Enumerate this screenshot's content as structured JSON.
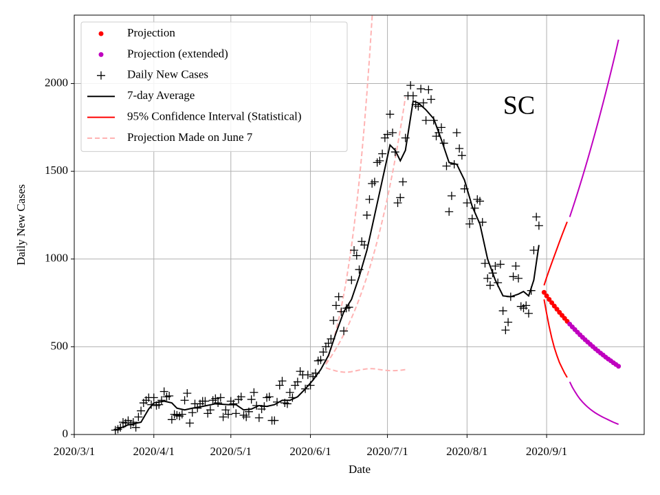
{
  "chart_data": {
    "type": "line",
    "annotation": "SC",
    "xlabel": "Date",
    "ylabel": "Daily New Cases",
    "xlim": [
      "2020/3/1",
      "2020/10/9"
    ],
    "xticks": [
      "2020/3/1",
      "2020/4/1",
      "2020/5/1",
      "2020/6/1",
      "2020/7/1",
      "2020/8/1",
      "2020/9/1"
    ],
    "ylim": [
      0,
      2390
    ],
    "yticks": [
      0,
      500,
      1000,
      1500,
      2000
    ],
    "grid": true,
    "legend": "upper left",
    "series": [
      {
        "name": "Projection",
        "color": "#ff0000",
        "style": "dots",
        "x": [
          "2020/8/31",
          "2020/9/1",
          "2020/9/2",
          "2020/9/3",
          "2020/9/4",
          "2020/9/5",
          "2020/9/6",
          "2020/9/7",
          "2020/9/8",
          "2020/9/9"
        ],
        "values": [
          810,
          790,
          770,
          751,
          732,
          714,
          696,
          679,
          662,
          645
        ]
      },
      {
        "name": "Projection (extended)",
        "color": "#bf00bf",
        "style": "dots",
        "x": [
          "2020/9/10",
          "2020/9/11",
          "2020/9/12",
          "2020/9/13",
          "2020/9/14",
          "2020/9/15",
          "2020/9/16",
          "2020/9/17",
          "2020/9/18",
          "2020/9/19",
          "2020/9/20",
          "2020/9/21",
          "2020/9/22",
          "2020/9/23",
          "2020/9/24",
          "2020/9/25",
          "2020/9/26",
          "2020/9/27",
          "2020/9/28",
          "2020/9/29"
        ],
        "values": [
          629,
          613,
          598,
          583,
          568,
          554,
          540,
          527,
          514,
          501,
          488,
          476,
          464,
          453,
          441,
          430,
          420,
          409,
          399,
          389
        ]
      },
      {
        "name": "Daily New Cases",
        "color": "#000000",
        "style": "plus",
        "x": [
          "2020/3/17",
          "2020/3/18",
          "2020/3/19",
          "2020/3/20",
          "2020/3/21",
          "2020/3/22",
          "2020/3/23",
          "2020/3/24",
          "2020/3/25",
          "2020/3/26",
          "2020/3/27",
          "2020/3/28",
          "2020/3/29",
          "2020/3/30",
          "2020/3/31",
          "2020/4/1",
          "2020/4/2",
          "2020/4/3",
          "2020/4/4",
          "2020/4/5",
          "2020/4/6",
          "2020/4/7",
          "2020/4/8",
          "2020/4/9",
          "2020/4/10",
          "2020/4/11",
          "2020/4/12",
          "2020/4/13",
          "2020/4/14",
          "2020/4/15",
          "2020/4/16",
          "2020/4/17",
          "2020/4/18",
          "2020/4/19",
          "2020/4/20",
          "2020/4/21",
          "2020/4/22",
          "2020/4/23",
          "2020/4/24",
          "2020/4/25",
          "2020/4/26",
          "2020/4/27",
          "2020/4/28",
          "2020/4/29",
          "2020/4/30",
          "2020/5/1",
          "2020/5/2",
          "2020/5/3",
          "2020/5/4",
          "2020/5/5",
          "2020/5/6",
          "2020/5/7",
          "2020/5/8",
          "2020/5/9",
          "2020/5/10",
          "2020/5/11",
          "2020/5/12",
          "2020/5/13",
          "2020/5/14",
          "2020/5/15",
          "2020/5/16",
          "2020/5/17",
          "2020/5/18",
          "2020/5/19",
          "2020/5/20",
          "2020/5/21",
          "2020/5/22",
          "2020/5/23",
          "2020/5/24",
          "2020/5/25",
          "2020/5/26",
          "2020/5/27",
          "2020/5/28",
          "2020/5/29",
          "2020/5/30",
          "2020/5/31",
          "2020/6/1",
          "2020/6/2",
          "2020/6/3",
          "2020/6/4",
          "2020/6/5",
          "2020/6/6",
          "2020/6/7",
          "2020/6/8",
          "2020/6/9",
          "2020/6/10",
          "2020/6/11",
          "2020/6/12",
          "2020/6/13",
          "2020/6/14",
          "2020/6/15",
          "2020/6/16",
          "2020/6/17",
          "2020/6/18",
          "2020/6/19",
          "2020/6/20",
          "2020/6/21",
          "2020/6/22",
          "2020/6/23",
          "2020/6/24",
          "2020/6/25",
          "2020/6/26",
          "2020/6/27",
          "2020/6/28",
          "2020/6/29",
          "2020/6/30",
          "2020/7/1",
          "2020/7/2",
          "2020/7/3",
          "2020/7/4",
          "2020/7/5",
          "2020/7/6",
          "2020/7/7",
          "2020/7/8",
          "2020/7/9",
          "2020/7/10",
          "2020/7/11",
          "2020/7/12",
          "2020/7/13",
          "2020/7/14",
          "2020/7/15",
          "2020/7/16",
          "2020/7/17",
          "2020/7/18",
          "2020/7/19",
          "2020/7/20",
          "2020/7/21",
          "2020/7/22",
          "2020/7/23",
          "2020/7/24",
          "2020/7/25",
          "2020/7/26",
          "2020/7/27",
          "2020/7/28",
          "2020/7/29",
          "2020/7/30",
          "2020/7/31",
          "2020/8/1",
          "2020/8/2",
          "2020/8/3",
          "2020/8/4",
          "2020/8/5",
          "2020/8/6",
          "2020/8/7",
          "2020/8/8",
          "2020/8/9",
          "2020/8/10",
          "2020/8/11",
          "2020/8/12",
          "2020/8/13",
          "2020/8/14",
          "2020/8/15",
          "2020/8/16",
          "2020/8/17",
          "2020/8/18",
          "2020/8/19",
          "2020/8/20",
          "2020/8/21",
          "2020/8/22",
          "2020/8/23",
          "2020/8/24",
          "2020/8/25",
          "2020/8/26",
          "2020/8/27",
          "2020/8/28",
          "2020/8/29"
        ],
        "values": [
          25,
          30,
          40,
          70,
          65,
          80,
          55,
          70,
          40,
          100,
          135,
          180,
          195,
          210,
          170,
          210,
          165,
          170,
          195,
          245,
          215,
          220,
          85,
          115,
          110,
          105,
          115,
          195,
          235,
          65,
          125,
          175,
          150,
          175,
          190,
          190,
          120,
          140,
          195,
          205,
          180,
          210,
          100,
          140,
          115,
          190,
          175,
          120,
          200,
          215,
          110,
          100,
          130,
          200,
          240,
          165,
          95,
          145,
          160,
          210,
          215,
          80,
          80,
          185,
          280,
          305,
          180,
          175,
          240,
          210,
          280,
          300,
          360,
          340,
          260,
          340,
          280,
          330,
          350,
          420,
          425,
          470,
          500,
          520,
          545,
          650,
          735,
          785,
          700,
          590,
          720,
          725,
          880,
          1050,
          1020,
          940,
          1100,
          1080,
          1250,
          1340,
          1430,
          1440,
          1550,
          1560,
          1600,
          1690,
          1710,
          1825,
          1720,
          1610,
          1320,
          1350,
          1440,
          1690,
          1930,
          1990,
          1930,
          1880,
          1870,
          1970,
          1890,
          1790,
          1965,
          1910,
          1790,
          1700,
          1720,
          1750,
          1660,
          1530,
          1270,
          1360,
          1540,
          1720,
          1630,
          1590,
          1400,
          1320,
          1200,
          1230,
          1290,
          1340,
          1330,
          1210,
          975,
          890,
          850,
          920,
          960,
          865,
          970,
          705,
          595,
          640,
          785,
          900,
          960,
          890,
          730,
          720,
          735,
          690,
          820,
          1050,
          1240,
          1190
        ]
      },
      {
        "name": "7-day Average",
        "color": "#000000",
        "style": "line",
        "x": [
          "2020/3/17",
          "2020/3/22",
          "2020/3/27",
          "2020/3/30",
          "2020/4/1",
          "2020/4/5",
          "2020/4/8",
          "2020/4/10",
          "2020/4/13",
          "2020/4/16",
          "2020/4/20",
          "2020/4/25",
          "2020/4/30",
          "2020/5/3",
          "2020/5/6",
          "2020/5/9",
          "2020/5/12",
          "2020/5/15",
          "2020/5/18",
          "2020/5/21",
          "2020/5/24",
          "2020/5/27",
          "2020/5/30",
          "2020/6/2",
          "2020/6/5",
          "2020/6/8",
          "2020/6/11",
          "2020/6/14",
          "2020/6/17",
          "2020/6/20",
          "2020/6/23",
          "2020/6/26",
          "2020/6/29",
          "2020/7/2",
          "2020/7/4",
          "2020/7/6",
          "2020/7/8",
          "2020/7/11",
          "2020/7/13",
          "2020/7/16",
          "2020/7/19",
          "2020/7/22",
          "2020/7/25",
          "2020/7/28",
          "2020/7/31",
          "2020/8/3",
          "2020/8/6",
          "2020/8/9",
          "2020/8/12",
          "2020/8/15",
          "2020/8/18",
          "2020/8/21",
          "2020/8/23",
          "2020/8/25",
          "2020/8/27",
          "2020/8/29"
        ],
        "values": [
          25,
          55,
          70,
          145,
          180,
          190,
          180,
          150,
          140,
          150,
          160,
          175,
          170,
          170,
          140,
          145,
          165,
          160,
          170,
          195,
          195,
          215,
          260,
          310,
          370,
          450,
          580,
          700,
          770,
          900,
          1050,
          1250,
          1450,
          1650,
          1620,
          1560,
          1620,
          1900,
          1890,
          1850,
          1800,
          1680,
          1550,
          1540,
          1450,
          1300,
          1200,
          1000,
          880,
          790,
          785,
          800,
          815,
          790,
          880,
          1080
        ]
      },
      {
        "name": "95% Confidence Interval (Statistical)",
        "color": "#ff0000",
        "style": "band",
        "x": [
          "2020/8/31",
          "2020/9/1",
          "2020/9/2",
          "2020/9/3",
          "2020/9/4",
          "2020/9/5",
          "2020/9/6",
          "2020/9/7",
          "2020/9/8",
          "2020/9/9"
        ],
        "upper": [
          850,
          895,
          937,
          978,
          1018,
          1058,
          1098,
          1137,
          1175,
          1212
        ],
        "lower": [
          770,
          690,
          615,
          550,
          495,
          450,
          410,
          380,
          350,
          325
        ]
      },
      {
        "color": "#bf00bf",
        "style": "band",
        "x": [
          "2020/9/10",
          "2020/9/11",
          "2020/9/12",
          "2020/9/13",
          "2020/9/14",
          "2020/9/15",
          "2020/9/16",
          "2020/9/17",
          "2020/9/18",
          "2020/9/19",
          "2020/9/20",
          "2020/9/21",
          "2020/9/22",
          "2020/9/23",
          "2020/9/24",
          "2020/9/25",
          "2020/9/26",
          "2020/9/27",
          "2020/9/28",
          "2020/9/29"
        ],
        "upper": [
          1240,
          1284,
          1329,
          1375,
          1422,
          1470,
          1519,
          1569,
          1620,
          1672,
          1725,
          1779,
          1834,
          1890,
          1947,
          2005,
          2064,
          2124,
          2185,
          2250
        ],
        "lower": [
          300,
          270,
          245,
          222,
          202,
          185,
          170,
          156,
          144,
          133,
          123,
          114,
          106,
          98,
          91,
          84,
          77,
          70,
          64,
          58
        ]
      },
      {
        "name": "Projection Made on June 7",
        "color": "#ffb3b3",
        "style": "dashed",
        "x": [
          "2020/6/7",
          "2020/6/8",
          "2020/6/9",
          "2020/6/10",
          "2020/6/11",
          "2020/6/12",
          "2020/6/13",
          "2020/6/14",
          "2020/6/15",
          "2020/6/16",
          "2020/6/17",
          "2020/6/18",
          "2020/6/19",
          "2020/6/20",
          "2020/6/21",
          "2020/6/22",
          "2020/6/23",
          "2020/6/24",
          "2020/6/25",
          "2020/6/26",
          "2020/6/27",
          "2020/6/28",
          "2020/6/29",
          "2020/6/30",
          "2020/7/1",
          "2020/7/2",
          "2020/7/3",
          "2020/7/4",
          "2020/7/5",
          "2020/7/6",
          "2020/7/7",
          "2020/7/8"
        ],
        "values": [
          400,
          421,
          443,
          466,
          490,
          515,
          542,
          570,
          600,
          631,
          664,
          698,
          734,
          773,
          813,
          855,
          899,
          946,
          995,
          1047,
          1101,
          1159,
          1219,
          1282,
          1349,
          1419,
          1493,
          1570,
          1652,
          1738,
          1828,
          1923
        ],
        "upper": [
          400,
          442,
          487,
          538,
          594,
          656,
          724,
          799,
          882,
          974,
          1075,
          1187,
          1310,
          1447,
          1597,
          1763,
          1947,
          2149,
          2373,
          2620,
          null,
          null,
          null,
          null,
          null,
          null,
          null,
          null,
          null,
          null,
          null,
          null
        ],
        "lower": [
          380,
          375,
          370,
          366,
          362,
          359,
          357,
          355,
          355,
          356,
          358,
          361,
          364,
          367,
          370,
          372,
          374,
          375,
          375,
          374,
          372,
          370,
          368,
          366,
          365,
          364,
          364,
          364,
          365,
          366,
          368,
          370
        ]
      }
    ]
  }
}
